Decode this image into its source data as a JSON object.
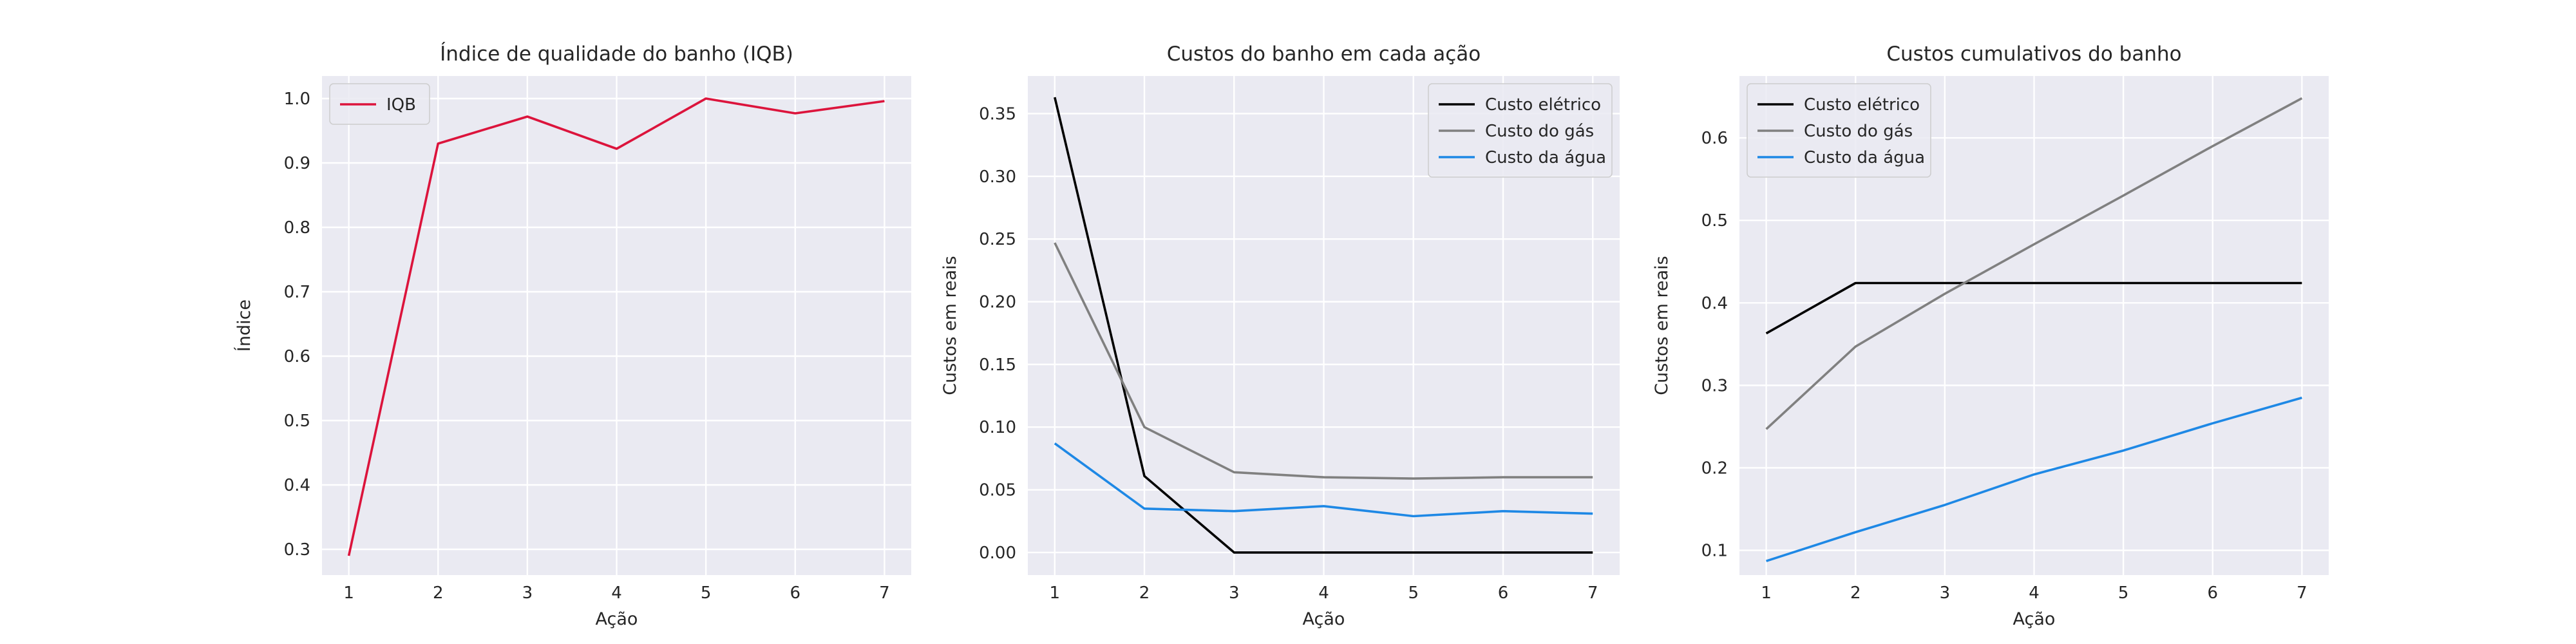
{
  "chart_data": [
    {
      "type": "line",
      "title": "Índice de qualidade do banho (IQB)",
      "xlabel": "Ação",
      "ylabel": "Índice",
      "x": [
        1,
        2,
        3,
        4,
        5,
        6,
        7
      ],
      "xlim": [
        0.7,
        7.3
      ],
      "ylim": [
        0.26,
        1.035
      ],
      "xticks": [
        "1",
        "2",
        "3",
        "4",
        "5",
        "6",
        "7"
      ],
      "yticks": [
        "0.3",
        "0.4",
        "0.5",
        "0.6",
        "0.7",
        "0.8",
        "0.9",
        "1.0"
      ],
      "grid": true,
      "legend_position": "upper-left",
      "series": [
        {
          "name": "IQB",
          "color": "#dc143c",
          "values": [
            0.29,
            0.93,
            0.972,
            0.922,
            1.0,
            0.977,
            0.996
          ]
        }
      ]
    },
    {
      "type": "line",
      "title": "Custos do banho em cada ação",
      "xlabel": "Ação",
      "ylabel": "Custos em reais",
      "x": [
        1,
        2,
        3,
        4,
        5,
        6,
        7
      ],
      "xlim": [
        0.7,
        7.3
      ],
      "ylim": [
        -0.018,
        0.38
      ],
      "xticks": [
        "1",
        "2",
        "3",
        "4",
        "5",
        "6",
        "7"
      ],
      "yticks": [
        "0.00",
        "0.05",
        "0.10",
        "0.15",
        "0.20",
        "0.25",
        "0.30",
        "0.35"
      ],
      "grid": true,
      "legend_position": "upper-right",
      "series": [
        {
          "name": "Custo elétrico",
          "color": "#000000",
          "values": [
            0.363,
            0.061,
            0.0,
            0.0,
            0.0,
            0.0,
            0.0
          ]
        },
        {
          "name": "Custo do gás",
          "color": "#808080",
          "values": [
            0.247,
            0.1,
            0.064,
            0.06,
            0.059,
            0.06,
            0.06
          ]
        },
        {
          "name": "Custo da água",
          "color": "#1e88e5",
          "values": [
            0.087,
            0.035,
            0.033,
            0.037,
            0.029,
            0.033,
            0.031
          ]
        }
      ]
    },
    {
      "type": "line",
      "title": "Custos cumulativos do banho",
      "xlabel": "Ação",
      "ylabel": "Custos em reais",
      "x": [
        1,
        2,
        3,
        4,
        5,
        6,
        7
      ],
      "xlim": [
        0.7,
        7.3
      ],
      "ylim": [
        0.07,
        0.675
      ],
      "xticks": [
        "1",
        "2",
        "3",
        "4",
        "5",
        "6",
        "7"
      ],
      "yticks": [
        "0.1",
        "0.2",
        "0.3",
        "0.4",
        "0.5",
        "0.6"
      ],
      "grid": true,
      "legend_position": "upper-left",
      "series": [
        {
          "name": "Custo elétrico",
          "color": "#000000",
          "values": [
            0.363,
            0.424,
            0.424,
            0.424,
            0.424,
            0.424,
            0.424
          ]
        },
        {
          "name": "Custo do gás",
          "color": "#808080",
          "values": [
            0.247,
            0.347,
            0.411,
            0.471,
            0.53,
            0.59,
            0.648
          ]
        },
        {
          "name": "Custo da água",
          "color": "#1e88e5",
          "values": [
            0.087,
            0.122,
            0.155,
            0.192,
            0.221,
            0.254,
            0.285
          ]
        }
      ]
    }
  ]
}
